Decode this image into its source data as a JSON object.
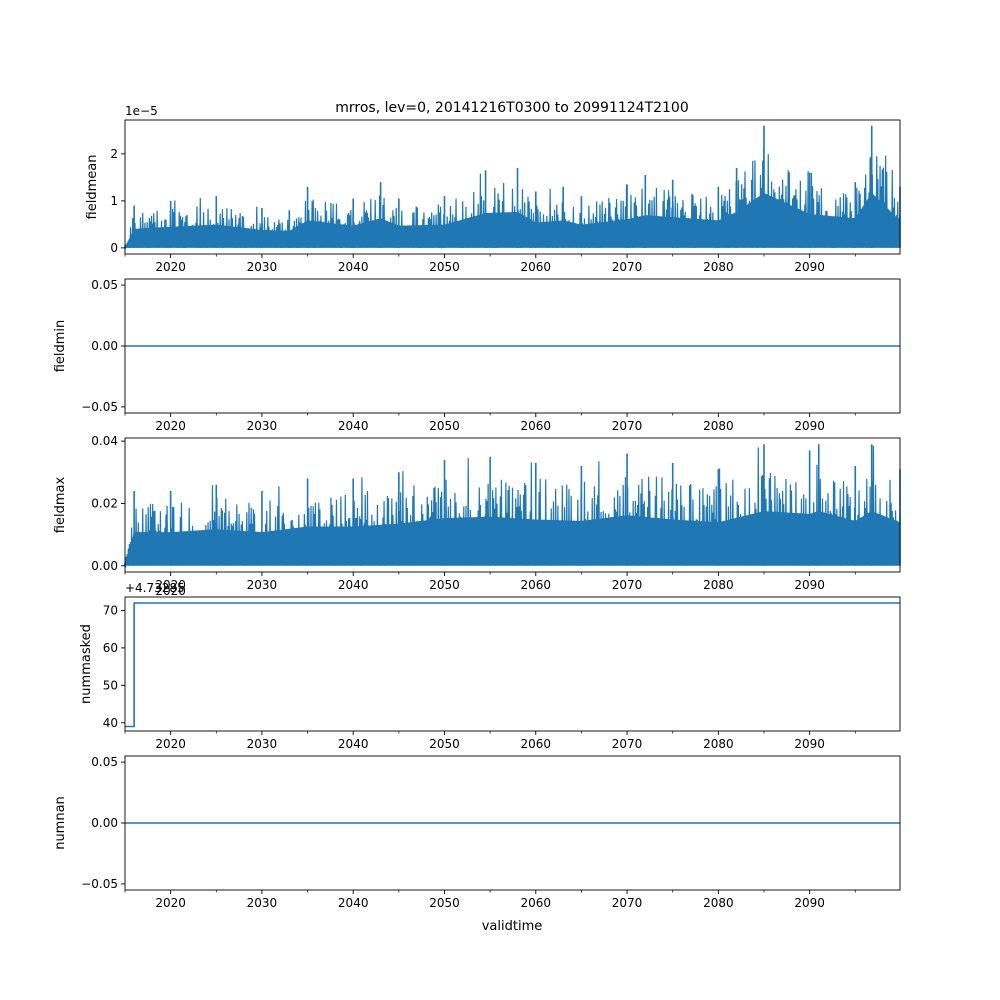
{
  "figure": {
    "title": "mrros, lev=0, 20141216T0300 to 20991124T2100",
    "xlabel": "validtime"
  },
  "colors": {
    "line": "#1f77b4",
    "axis": "#000000",
    "background": "#ffffff"
  },
  "chart_data": [
    {
      "type": "line",
      "ylabel": "fieldmean",
      "offset_text": "1e−5",
      "xlim": [
        2015.0,
        2099.9
      ],
      "ylim": [
        -0.13,
        2.72
      ],
      "x_ticks": [
        2020,
        2030,
        2040,
        2050,
        2060,
        2070,
        2080,
        2090
      ],
      "y_ticks": [
        0,
        1,
        2
      ],
      "y_tick_labels": [
        "0",
        "1",
        "2"
      ],
      "noisy": true,
      "series_x": [
        2015.0,
        2016.0,
        2020,
        2025,
        2030,
        2033,
        2035,
        2040,
        2043,
        2045,
        2050,
        2054.5,
        2058,
        2060,
        2063,
        2065,
        2070,
        2072,
        2075,
        2080,
        2082,
        2085,
        2090,
        2095,
        2096.8,
        2099.9
      ],
      "series_upper": [
        0.05,
        0.9,
        1.0,
        1.1,
        0.85,
        0.8,
        1.3,
        1.05,
        1.4,
        1.05,
        1.1,
        1.65,
        1.7,
        1.2,
        1.3,
        1.1,
        1.35,
        1.55,
        1.45,
        1.3,
        1.7,
        2.6,
        1.6,
        1.4,
        2.6,
        1.3
      ],
      "series_lower": 0.0
    },
    {
      "type": "line",
      "ylabel": "fieldmin",
      "offset_text": "",
      "xlim": [
        2015.0,
        2099.9
      ],
      "ylim": [
        -0.055,
        0.055
      ],
      "x_ticks": [
        2020,
        2030,
        2040,
        2050,
        2060,
        2070,
        2080,
        2090
      ],
      "y_ticks": [
        -0.05,
        0.0,
        0.05
      ],
      "y_tick_labels": [
        "−0.05",
        "0.00",
        "0.05"
      ],
      "noisy": false,
      "series_x": [
        2015.0,
        2099.9
      ],
      "series_y": [
        0.0,
        0.0
      ]
    },
    {
      "type": "line",
      "ylabel": "fieldmax",
      "offset_text": "",
      "xlim": [
        2015.0,
        2099.9
      ],
      "ylim": [
        -0.002,
        0.041
      ],
      "x_ticks": [
        2020,
        2030,
        2040,
        2050,
        2060,
        2070,
        2080,
        2090
      ],
      "y_ticks": [
        0.0,
        0.02,
        0.04
      ],
      "y_tick_labels": [
        "0.00",
        "0.02",
        "0.04"
      ],
      "noisy": true,
      "series_x": [
        2015.0,
        2016.0,
        2020,
        2025,
        2030,
        2035,
        2040,
        2045,
        2050,
        2055,
        2060,
        2065,
        2070,
        2075,
        2080,
        2085,
        2090,
        2091,
        2095,
        2096.8,
        2099.9
      ],
      "series_upper": [
        0.001,
        0.024,
        0.024,
        0.026,
        0.024,
        0.028,
        0.028,
        0.03,
        0.034,
        0.035,
        0.033,
        0.032,
        0.036,
        0.033,
        0.031,
        0.039,
        0.037,
        0.039,
        0.032,
        0.039,
        0.031
      ],
      "series_lower": 0.0
    },
    {
      "type": "line",
      "ylabel": "nummasked",
      "offset_text": "+4.73285",
      "offset_text_overlap": "2020",
      "xlim": [
        2015.0,
        2099.9
      ],
      "ylim": [
        37.8,
        73.6
      ],
      "x_ticks": [
        2020,
        2030,
        2040,
        2050,
        2060,
        2070,
        2080,
        2090
      ],
      "y_ticks": [
        40,
        50,
        60,
        70
      ],
      "y_tick_labels": [
        "40",
        "50",
        "60",
        "70"
      ],
      "noisy": false,
      "series_x": [
        2015.0,
        2016.0,
        2016.0,
        2099.9
      ],
      "series_y": [
        39,
        39,
        72,
        72
      ]
    },
    {
      "type": "line",
      "ylabel": "numnan",
      "offset_text": "",
      "xlim": [
        2015.0,
        2099.9
      ],
      "ylim": [
        -0.055,
        0.055
      ],
      "x_ticks": [
        2020,
        2030,
        2040,
        2050,
        2060,
        2070,
        2080,
        2090
      ],
      "y_ticks": [
        -0.05,
        0.0,
        0.05
      ],
      "y_tick_labels": [
        "−0.05",
        "0.00",
        "0.05"
      ],
      "noisy": false,
      "series_x": [
        2015.0,
        2099.9
      ],
      "series_y": [
        0.0,
        0.0
      ]
    }
  ]
}
